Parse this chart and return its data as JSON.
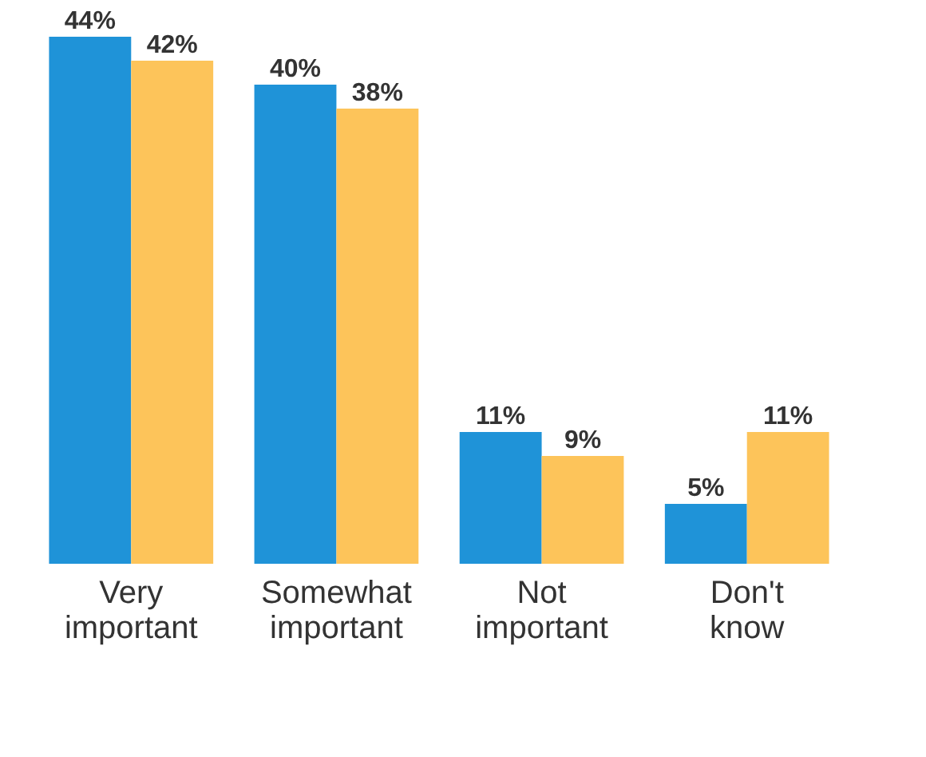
{
  "chart_data": {
    "type": "bar",
    "categories": [
      "Very important",
      "Somewhat important",
      "Not important",
      "Don't know"
    ],
    "series": [
      {
        "color": "#1f93d8",
        "values": [
          44,
          40,
          11,
          5
        ],
        "value_labels": [
          "44%",
          "40%",
          "11%",
          "5%"
        ]
      },
      {
        "color": "#fdc45a",
        "values": [
          42,
          38,
          9,
          11
        ],
        "value_labels": [
          "42%",
          "38%",
          "9%",
          "11%"
        ]
      }
    ],
    "grid": false
  }
}
